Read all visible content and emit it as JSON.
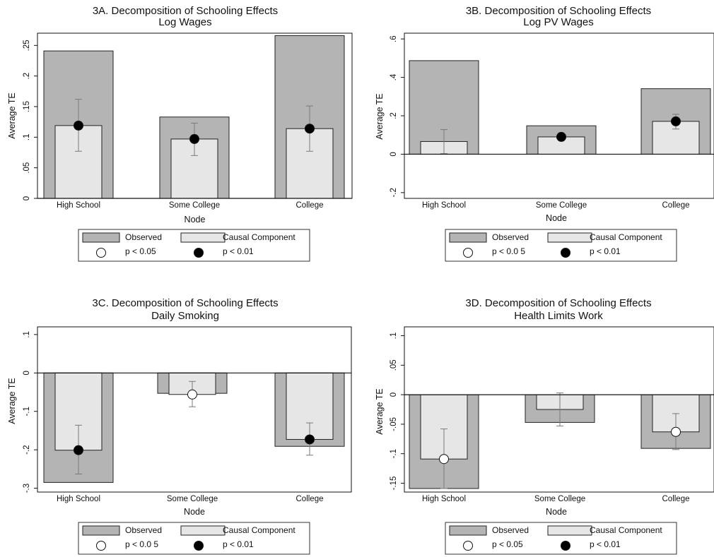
{
  "colors": {
    "observed": "#b4b4b4",
    "causal": "#e6e6e6",
    "point_sig01": "#000000",
    "point_sig05": "#ffffff",
    "error_bar": "#7a7a7a"
  },
  "chart_data": [
    {
      "type": "bar",
      "title": "3A. Decomposition of Schooling Effects",
      "subtitle": "Log Wages",
      "xlabel": "Node",
      "ylabel": "Average TE",
      "categories": [
        "High School",
        "Some College",
        "College"
      ],
      "ylim": [
        0,
        0.27
      ],
      "yticks": [
        0,
        0.05,
        0.1,
        0.15,
        0.2,
        0.25
      ],
      "ytick_labels": [
        "0",
        ".05",
        ".1",
        ".15",
        ".2",
        ".25"
      ],
      "series": [
        {
          "name": "Observed",
          "values": [
            0.241,
            0.133,
            0.266
          ]
        },
        {
          "name": "Causal Component",
          "values": [
            0.119,
            0.097,
            0.114
          ]
        }
      ],
      "points": [
        0.119,
        0.097,
        0.114
      ],
      "ci_low": [
        0.077,
        0.07,
        0.077
      ],
      "ci_high": [
        0.162,
        0.123,
        0.151
      ],
      "significance": [
        "p<0.01",
        "p<0.01",
        "p<0.01"
      ],
      "legend": {
        "observed": "Observed",
        "causal": "Causal Component",
        "sig05": "p < 0.05",
        "sig01": "p < 0.01"
      }
    },
    {
      "type": "bar",
      "title": "3B. Decomposition of Schooling Effects",
      "subtitle": "Log PV Wages",
      "xlabel": "Node",
      "ylabel": "Average TE",
      "categories": [
        "High School",
        "Some College",
        "College"
      ],
      "ylim": [
        -0.23,
        0.63
      ],
      "yticks": [
        -0.2,
        0,
        0.2,
        0.4,
        0.6
      ],
      "ytick_labels": [
        "-.2",
        "0",
        ".2",
        ".4",
        ".6"
      ],
      "series": [
        {
          "name": "Observed",
          "values": [
            0.487,
            0.148,
            0.341
          ]
        },
        {
          "name": "Causal Component",
          "values": [
            0.066,
            0.09,
            0.171
          ]
        }
      ],
      "points": [
        null,
        0.09,
        0.171
      ],
      "ci_low": [
        0.003,
        0.075,
        0.131
      ],
      "ci_high": [
        0.128,
        0.107,
        0.208
      ],
      "significance": [
        "none",
        "p<0.01",
        "p<0.01"
      ],
      "legend": {
        "observed": "Observed",
        "causal": "Causal Component",
        "sig05": "p < 0.0 5",
        "sig01": "p < 0.01"
      }
    },
    {
      "type": "bar",
      "title": "3C. Decomposition of Schooling Effects",
      "subtitle": "Daily Smoking",
      "xlabel": "Node",
      "ylabel": "Average TE",
      "categories": [
        "High School",
        "Some College",
        "College"
      ],
      "ylim": [
        -0.31,
        0.12
      ],
      "yticks": [
        -0.3,
        -0.2,
        -0.1,
        0,
        0.1
      ],
      "ytick_labels": [
        "-.3",
        "-.2",
        "-.1",
        "0",
        ".1"
      ],
      "series": [
        {
          "name": "Observed",
          "values": [
            -0.285,
            -0.053,
            -0.191
          ]
        },
        {
          "name": "Causal Component",
          "values": [
            -0.201,
            -0.056,
            -0.173
          ]
        }
      ],
      "points": [
        -0.201,
        -0.056,
        -0.173
      ],
      "ci_low": [
        -0.263,
        -0.088,
        -0.214
      ],
      "ci_high": [
        -0.136,
        -0.022,
        -0.13
      ],
      "significance": [
        "p<0.01",
        "p<0.05",
        "p<0.01"
      ],
      "legend": {
        "observed": "Observed",
        "causal": "Causal Component",
        "sig05": "p < 0.0 5",
        "sig01": "p < 0.01"
      }
    },
    {
      "type": "bar",
      "title": "3D. Decomposition of Schooling Effects",
      "subtitle": "Health Limits Work",
      "xlabel": "Node",
      "ylabel": "Average TE",
      "categories": [
        "High School",
        "Some College",
        "College"
      ],
      "ylim": [
        -0.165,
        0.115
      ],
      "yticks": [
        -0.15,
        -0.1,
        -0.05,
        0,
        0.05,
        0.1
      ],
      "ytick_labels": [
        "-.15",
        "-.1",
        "-.05",
        "0",
        ".05",
        ".1"
      ],
      "series": [
        {
          "name": "Observed",
          "values": [
            -0.159,
            -0.047,
            -0.091
          ]
        },
        {
          "name": "Causal Component",
          "values": [
            -0.109,
            -0.025,
            -0.063
          ]
        }
      ],
      "points": [
        -0.109,
        null,
        -0.063
      ],
      "ci_low": [
        -0.159,
        -0.053,
        -0.093
      ],
      "ci_high": [
        -0.058,
        0.003,
        -0.032
      ],
      "significance": [
        "p<0.05",
        "none",
        "p<0.05"
      ],
      "legend": {
        "observed": "Observed",
        "causal": "Causal Component",
        "sig05": "p < 0.05",
        "sig01": "p < 0.01"
      }
    }
  ]
}
